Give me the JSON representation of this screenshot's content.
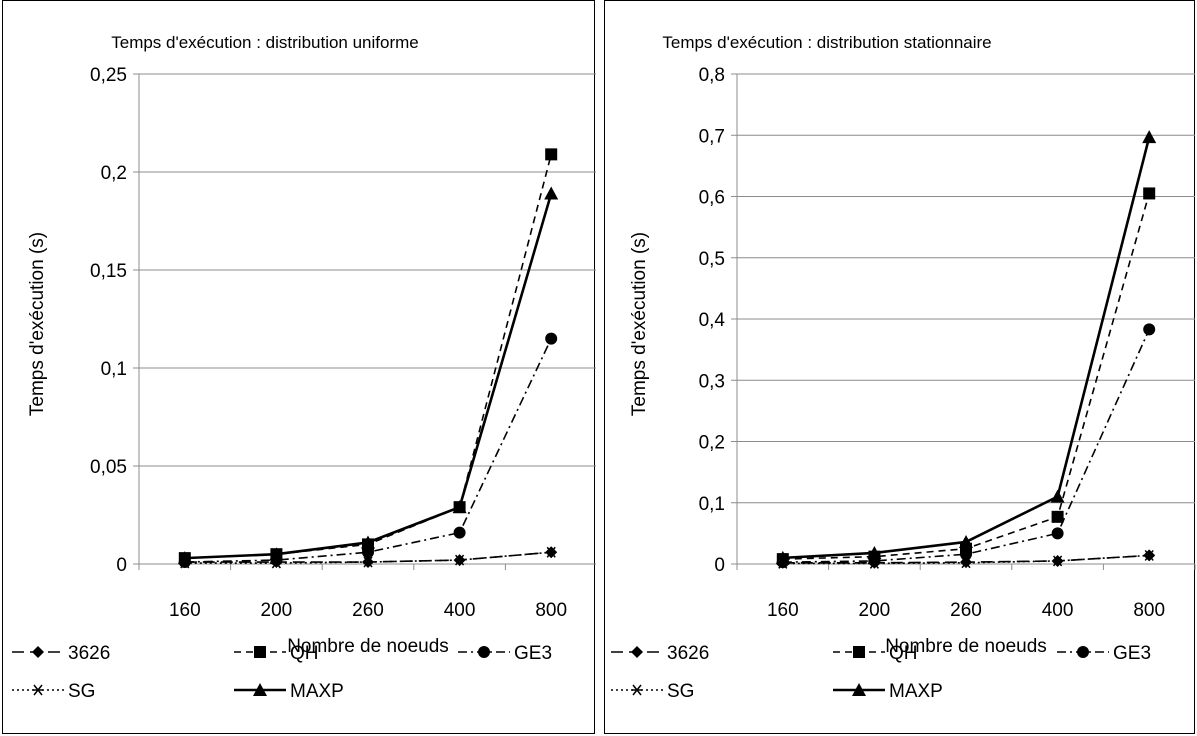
{
  "chart_data": [
    {
      "type": "line",
      "title": "Temps d'exécution : distribution uniforme",
      "xlabel": "Nombre de noeuds",
      "ylabel": "Temps d'exécution (s)",
      "categories": [
        "160",
        "200",
        "260",
        "400",
        "800"
      ],
      "ylim": [
        0,
        0.25
      ],
      "yticks": [
        "0",
        "0,05",
        "0,1",
        "0,15",
        "0,2",
        "0,25"
      ],
      "ytick_values": [
        0,
        0.05,
        0.1,
        0.15,
        0.2,
        0.25
      ],
      "grid": true,
      "legend_position": "bottom",
      "series": [
        {
          "name": "3626",
          "values": [
            0.001,
            0.001,
            0.001,
            0.002,
            0.006
          ],
          "marker": "diamond",
          "dash": "long-dash"
        },
        {
          "name": "QH",
          "values": [
            0.003,
            0.005,
            0.01,
            0.029,
            0.209
          ],
          "marker": "square",
          "dash": "dash"
        },
        {
          "name": "GE3",
          "values": [
            0.001,
            0.002,
            0.006,
            0.016,
            0.115
          ],
          "marker": "circle",
          "dash": "dash-dot"
        },
        {
          "name": "SG",
          "values": [
            0.0005,
            0.0005,
            0.001,
            0.002,
            0.006
          ],
          "marker": "star",
          "dash": "dot"
        },
        {
          "name": "MAXP",
          "values": [
            0.003,
            0.005,
            0.011,
            0.029,
            0.189
          ],
          "marker": "triangle",
          "dash": "solid"
        }
      ]
    },
    {
      "type": "line",
      "title": "Temps d'exécution : distribution stationnaire",
      "xlabel": "Nombre de noeuds",
      "ylabel": "Temps d'exécution (s)",
      "categories": [
        "160",
        "200",
        "260",
        "400",
        "800"
      ],
      "ylim": [
        0,
        0.8
      ],
      "yticks": [
        "0",
        "0,1",
        "0,2",
        "0,3",
        "0,4",
        "0,5",
        "0,6",
        "0,7",
        "0,8"
      ],
      "ytick_values": [
        0,
        0.1,
        0.2,
        0.3,
        0.4,
        0.5,
        0.6,
        0.7,
        0.8
      ],
      "grid": true,
      "legend_position": "bottom",
      "series": [
        {
          "name": "3626",
          "values": [
            0.002,
            0.002,
            0.003,
            0.005,
            0.014
          ],
          "marker": "diamond",
          "dash": "long-dash"
        },
        {
          "name": "QH",
          "values": [
            0.008,
            0.012,
            0.025,
            0.077,
            0.605
          ],
          "marker": "square",
          "dash": "dash"
        },
        {
          "name": "GE3",
          "values": [
            0.003,
            0.005,
            0.016,
            0.05,
            0.383
          ],
          "marker": "circle",
          "dash": "dash-dot"
        },
        {
          "name": "SG",
          "values": [
            0.001,
            0.001,
            0.002,
            0.005,
            0.014
          ],
          "marker": "star",
          "dash": "dot"
        },
        {
          "name": "MAXP",
          "values": [
            0.01,
            0.018,
            0.036,
            0.11,
            0.697
          ],
          "marker": "triangle",
          "dash": "solid"
        }
      ]
    }
  ]
}
